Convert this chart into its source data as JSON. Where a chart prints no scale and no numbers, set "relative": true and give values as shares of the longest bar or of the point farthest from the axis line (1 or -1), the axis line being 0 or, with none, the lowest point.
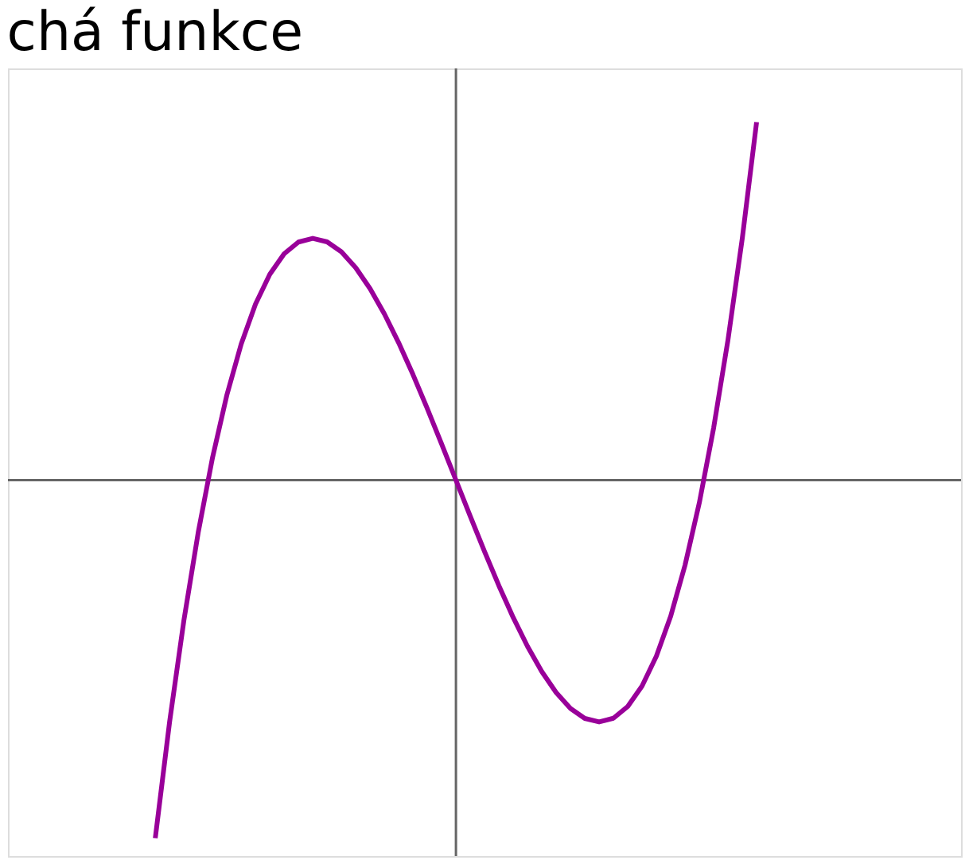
{
  "chart_data": {
    "type": "line",
    "title": "chá funkce",
    "relative": true,
    "categories": [
      null,
      null,
      null,
      null,
      null,
      null,
      null,
      null,
      null,
      null,
      null,
      null,
      null,
      null,
      null,
      null,
      null,
      null,
      null,
      null,
      null,
      null,
      null,
      null,
      null,
      null,
      null,
      null,
      null,
      null,
      null,
      null,
      null,
      null,
      null,
      null,
      null,
      null,
      null,
      null,
      null,
      null,
      null
    ],
    "series": [
      {
        "color": "#990099",
        "values": [
          -1.0,
          -0.6754,
          -0.3914,
          -0.1459,
          0.0632,
          0.2378,
          0.3799,
          0.4917,
          0.5751,
          0.6322,
          0.665,
          0.6754,
          0.6656,
          0.6376,
          0.5934,
          0.535,
          0.4644,
          0.3837,
          0.2948,
          0.1999,
          0.101,
          0.0,
          -0.101,
          -0.1999,
          -0.2948,
          -0.3837,
          -0.4644,
          -0.535,
          -0.5934,
          -0.6376,
          -0.6656,
          -0.6754,
          -0.665,
          -0.6322,
          -0.5751,
          -0.4917,
          -0.3799,
          -0.2378,
          -0.0632,
          0.1459,
          0.3914,
          0.6754,
          1.0
        ]
      }
    ],
    "marker": "none",
    "line_style": "solid"
  }
}
